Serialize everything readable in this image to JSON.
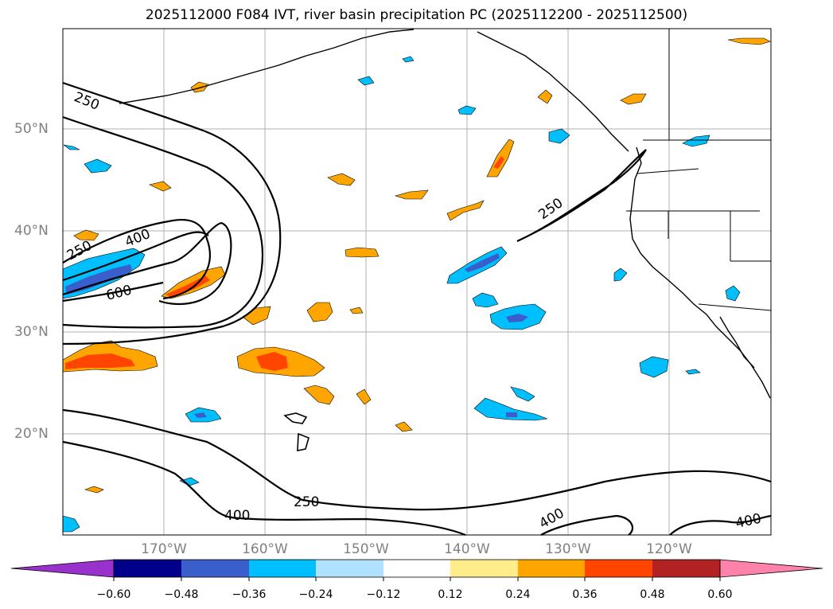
{
  "title": "2025112000 F084 IVT, river basin precipitation PC (2025112200 - 2025112500)",
  "latitude_labels": [
    "50°N",
    "40°N",
    "30°N",
    "20°N"
  ],
  "longitude_labels": [
    "170°W",
    "160°W",
    "150°W",
    "140°W",
    "130°W",
    "120°W"
  ],
  "contour_labels": [
    "250",
    "400",
    "600",
    "250",
    "250",
    "400",
    "400",
    "250",
    "400"
  ],
  "colorbar": {
    "ticks": [
      "−0.60",
      "−0.48",
      "−0.36",
      "−0.24",
      "−0.12",
      "0.12",
      "0.24",
      "0.36",
      "0.48",
      "0.60"
    ],
    "colors": [
      "#9932cc",
      "#00008b",
      "#3a5fcd",
      "#00bfff",
      "#b0e2ff",
      "#ffffff",
      "#ffec8b",
      "#ffa500",
      "#ff4500",
      "#b22222",
      "#ff82ab"
    ]
  },
  "palette": {
    "orange": "#ffa500",
    "red_orange": "#ff4500",
    "deep_sky_blue": "#00bfff",
    "royal_blue": "#3a5fcd",
    "grid": "#b0b0b0"
  }
}
